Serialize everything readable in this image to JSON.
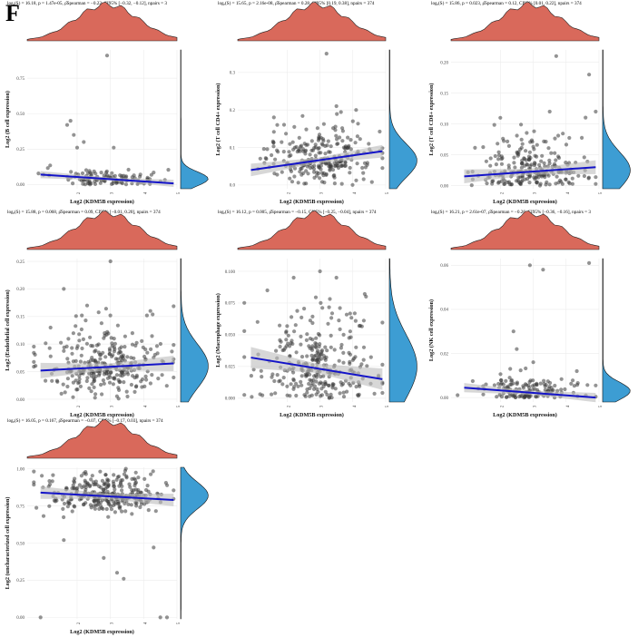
{
  "figure": {
    "panel_letter": "F"
  },
  "colors": {
    "density_top": "#d9695b",
    "density_right": "#3d9dd3",
    "fit_line": "#1414c8",
    "ci_band": "#bdbdbd",
    "point": "#3a3a3a"
  },
  "chart_data": [
    {
      "type": "scatter",
      "title": "logₑ(S) = 16.18, p = 1.47e-05, ρ̂Spearman = −0.22, CI95% [−0.32, −0.12], npairs = 3",
      "xlabel": "Log2 (KDM5B expression)",
      "ylabel": "Log2 (B cell expression)",
      "xlim": [
        0.5,
        5
      ],
      "ylim": [
        -0.03,
        0.95
      ],
      "xticks": [
        2,
        3,
        4,
        5
      ],
      "yticks": [
        0.0,
        0.25,
        0.5,
        0.75
      ],
      "ytick_labels": [
        "0.00",
        "0.25",
        "0.50",
        "0.75"
      ],
      "fit": {
        "x": [
          0.9,
          4.9
        ],
        "y": [
          0.07,
          0.008
        ]
      },
      "ci_halfwidth": 0.018,
      "outliers": [
        [
          2.9,
          0.91
        ],
        [
          1.8,
          0.45
        ],
        [
          1.7,
          0.42
        ],
        [
          1.9,
          0.35
        ],
        [
          2.2,
          0.3
        ],
        [
          2.0,
          0.26
        ],
        [
          3.1,
          0.26
        ]
      ],
      "point_spread": {
        "center": 0.04,
        "sd": 0.05,
        "floor": 0.0
      },
      "n_points": 110
    },
    {
      "type": "scatter",
      "title": "logₑ(S) = 15.65, p = 2.16e-08, ρ̂Spearman = 0.28, CI95% [0.19, 0.38], npairs = 374",
      "xlabel": "Log2 (KDM5B expression)",
      "ylabel": "Log2 (T cell CD4+ expression)",
      "xlim": [
        0.5,
        5
      ],
      "ylim": [
        -0.01,
        0.36
      ],
      "xticks": [
        2,
        3,
        4,
        5
      ],
      "yticks": [
        0.0,
        0.1,
        0.2,
        0.3
      ],
      "ytick_labels": [
        "0.0",
        "0.1",
        "0.2",
        "0.3"
      ],
      "fit": {
        "x": [
          0.9,
          4.9
        ],
        "y": [
          0.04,
          0.09
        ]
      },
      "ci_halfwidth": 0.012,
      "outliers": [
        [
          3.2,
          0.35
        ],
        [
          1.6,
          0.18
        ],
        [
          1.7,
          0.16
        ],
        [
          3.5,
          0.21
        ],
        [
          4.1,
          0.2
        ],
        [
          4.0,
          0.17
        ]
      ],
      "point_spread": {
        "center": 0.065,
        "sd": 0.045,
        "floor": 0.0
      },
      "n_points": 260
    },
    {
      "type": "scatter",
      "title": "logₑ(S) = 15.86, p = 0.023, ρ̂Spearman = 0.12, CI95% [0.01, 0.22], npairs = 374",
      "xlabel": "Log2 (KDM5B expression)",
      "ylabel": "Log2 (T cell CD8+ expression)",
      "xlim": [
        0.5,
        5
      ],
      "ylim": [
        -0.005,
        0.22
      ],
      "xticks": [
        2,
        3,
        4,
        5
      ],
      "yticks": [
        0.0,
        0.05,
        0.1,
        0.15,
        0.2
      ],
      "ytick_labels": [
        "0.00",
        "0.05",
        "0.10",
        "0.15",
        "0.20"
      ],
      "fit": {
        "x": [
          0.9,
          4.9
        ],
        "y": [
          0.015,
          0.03
        ]
      },
      "ci_halfwidth": 0.008,
      "outliers": [
        [
          3.7,
          0.21
        ],
        [
          4.7,
          0.18
        ],
        [
          3.5,
          0.12
        ],
        [
          2.0,
          0.11
        ],
        [
          4.9,
          0.12
        ]
      ],
      "point_spread": {
        "center": 0.025,
        "sd": 0.03,
        "floor": 0.0
      },
      "n_points": 240
    },
    {
      "type": "scatter",
      "title": "logₑ(S) = 15.88, p = 0.068, ρ̂Spearman = 0.09, CI95% [−0.01, 0.20], npairs = 374",
      "xlabel": "Log2 (KDM5B expression)",
      "ylabel": "Log2 (Endothelial cell expression)",
      "xlim": [
        0.5,
        5
      ],
      "ylim": [
        -0.005,
        0.255
      ],
      "xticks": [
        2,
        3,
        4,
        5
      ],
      "yticks": [
        0.0,
        0.05,
        0.1,
        0.15,
        0.2,
        0.25
      ],
      "ytick_labels": [
        "0.00",
        "0.05",
        "0.10",
        "0.15",
        "0.20",
        "0.25"
      ],
      "fit": {
        "x": [
          0.9,
          4.9
        ],
        "y": [
          0.052,
          0.065
        ]
      },
      "ci_halfwidth": 0.01,
      "outliers": [
        [
          3.0,
          0.25
        ],
        [
          1.6,
          0.2
        ],
        [
          4.2,
          0.16
        ],
        [
          2.3,
          0.17
        ],
        [
          1.2,
          0.13
        ]
      ],
      "point_spread": {
        "center": 0.06,
        "sd": 0.04,
        "floor": 0.0
      },
      "n_points": 300
    },
    {
      "type": "scatter",
      "title": "logₑ(S) = 16.12, p = 0.005, ρ̂Spearman = −0.15, CI95% [−0.25, −0.04], npairs = 374",
      "xlabel": "Log2 (KDM5B expression)",
      "ylabel": "Log2 (Macrophage expression)",
      "xlim": [
        0.5,
        5
      ],
      "ylim": [
        -0.003,
        0.11
      ],
      "xticks": [
        2,
        3,
        4,
        5
      ],
      "yticks": [
        0.0,
        0.025,
        0.05,
        0.075,
        0.1
      ],
      "ytick_labels": [
        "0.000",
        "0.025",
        "0.050",
        "0.075",
        "0.100"
      ],
      "fit": {
        "x": [
          0.9,
          4.9
        ],
        "y": [
          0.032,
          0.015
        ]
      },
      "ci_halfwidth": 0.006,
      "outliers": [
        [
          3.0,
          0.1
        ],
        [
          2.2,
          0.095
        ],
        [
          3.5,
          0.095
        ],
        [
          1.4,
          0.085
        ],
        [
          4.4,
          0.08
        ]
      ],
      "point_spread": {
        "center": 0.025,
        "sd": 0.025,
        "floor": 0.0
      },
      "n_points": 300
    },
    {
      "type": "scatter",
      "title": "logₑ(S) = 16.21, p = 2.61e-07, ρ̂Spearman = −0.26, CI95% [−0.36, −0.16], npairs = 3",
      "xlabel": "Log2 (KDM5B expression)",
      "ylabel": "Log2 (NK cell expression)",
      "xlim": [
        0.5,
        5
      ],
      "ylim": [
        -0.002,
        0.063
      ],
      "xticks": [
        2,
        3,
        4,
        5
      ],
      "yticks": [
        0.0,
        0.02,
        0.04,
        0.06
      ],
      "ytick_labels": [
        "0.00",
        "0.02",
        "0.04",
        "0.06"
      ],
      "fit": {
        "x": [
          0.9,
          4.9
        ],
        "y": [
          0.0045,
          0.0
        ]
      },
      "ci_halfwidth": 0.0015,
      "outliers": [
        [
          4.7,
          0.061
        ],
        [
          2.9,
          0.06
        ],
        [
          3.3,
          0.058
        ],
        [
          2.4,
          0.03
        ],
        [
          2.5,
          0.022
        ],
        [
          3.0,
          0.016
        ],
        [
          2.3,
          0.013
        ]
      ],
      "point_spread": {
        "center": 0.003,
        "sd": 0.004,
        "floor": 0.0
      },
      "n_points": 140
    },
    {
      "type": "scatter",
      "title": "logₑ(S) = 16.05, p = 0.167, ρ̂Spearman = −0.07, CI95% [−0.17, 0.03], npairs = 374",
      "xlabel": "Log2 (KDM5B expression)",
      "ylabel": "Log2 (uncharacterized cell expression)",
      "xlim": [
        0.5,
        5
      ],
      "ylim": [
        -0.01,
        1.01
      ],
      "xticks": [
        2,
        3,
        4,
        5
      ],
      "yticks": [
        0.0,
        0.25,
        0.5,
        0.75,
        1.0
      ],
      "ytick_labels": [
        "0.00",
        "0.25",
        "0.50",
        "0.75",
        "1.00"
      ],
      "fit": {
        "x": [
          0.9,
          4.9
        ],
        "y": [
          0.84,
          0.79
        ]
      },
      "ci_halfwidth": 0.03,
      "outliers": [
        [
          3.4,
          0.26
        ],
        [
          3.2,
          0.3
        ],
        [
          2.8,
          0.4
        ],
        [
          1.6,
          0.52
        ],
        [
          4.5,
          0.0
        ],
        [
          4.7,
          0.0
        ],
        [
          0.9,
          0.0
        ],
        [
          4.3,
          0.47
        ]
      ],
      "point_spread": {
        "center": 0.82,
        "sd": 0.09,
        "floor": 0.0
      },
      "n_points": 300
    }
  ]
}
